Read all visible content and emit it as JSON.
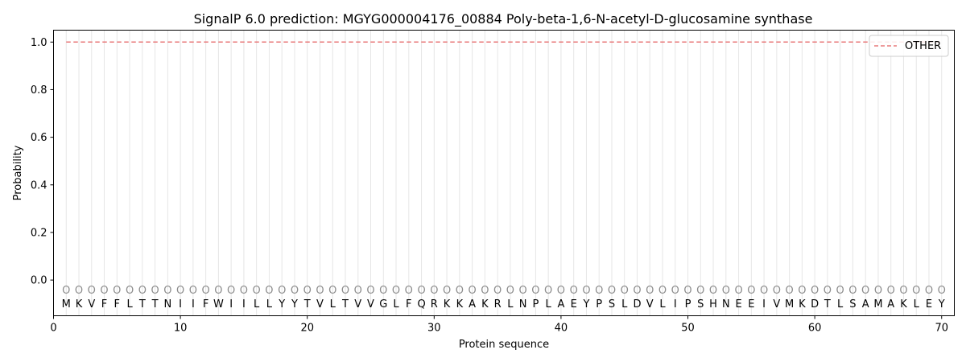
{
  "chart_data": {
    "type": "line",
    "title": "SignalP 6.0 prediction: MGYG000004176_00884 Poly-beta-1,6-N-acetyl-D-glucosamine synthase",
    "xlabel": "Protein sequence",
    "ylabel": "Probability",
    "xlim": [
      0,
      71
    ],
    "ylim": [
      -0.15,
      1.05
    ],
    "xticks": [
      0,
      10,
      20,
      30,
      40,
      50,
      60,
      70
    ],
    "yticks": [
      "0.0",
      "0.2",
      "0.4",
      "0.6",
      "0.8",
      "1.0"
    ],
    "ytick_values": [
      0.0,
      0.2,
      0.4,
      0.6,
      0.8,
      1.0
    ],
    "sequence": [
      "M",
      "K",
      "V",
      "F",
      "F",
      "L",
      "T",
      "T",
      "N",
      "I",
      "I",
      "F",
      "W",
      "I",
      "I",
      "L",
      "L",
      "Y",
      "Y",
      "T",
      "V",
      "L",
      "T",
      "V",
      "V",
      "G",
      "L",
      "F",
      "Q",
      "R",
      "K",
      "K",
      "A",
      "K",
      "R",
      "L",
      "N",
      "P",
      "L",
      "A",
      "E",
      "Y",
      "P",
      "S",
      "L",
      "D",
      "V",
      "L",
      "I",
      "P",
      "S",
      "H",
      "N",
      "E",
      "E",
      "I",
      "V",
      "M",
      "K",
      "D",
      "T",
      "L",
      "S",
      "A",
      "M",
      "A",
      "K",
      "L",
      "E",
      "Y"
    ],
    "region_labels": [
      "O",
      "O",
      "O",
      "O",
      "O",
      "O",
      "O",
      "O",
      "O",
      "O",
      "O",
      "O",
      "O",
      "O",
      "O",
      "O",
      "O",
      "O",
      "O",
      "O",
      "O",
      "O",
      "O",
      "O",
      "O",
      "O",
      "O",
      "O",
      "O",
      "O",
      "O",
      "O",
      "O",
      "O",
      "O",
      "O",
      "O",
      "O",
      "O",
      "O",
      "O",
      "O",
      "O",
      "O",
      "O",
      "O",
      "O",
      "O",
      "O",
      "O",
      "O",
      "O",
      "O",
      "O",
      "O",
      "O",
      "O",
      "O",
      "O",
      "O",
      "O",
      "O",
      "O",
      "O",
      "O",
      "O",
      "O",
      "O",
      "O",
      "O"
    ],
    "series": [
      {
        "name": "OTHER",
        "color": "#e8797a",
        "style": "dashed",
        "x_start": 1,
        "x_end": 70,
        "values": [
          1,
          1,
          1,
          1,
          1,
          1,
          1,
          1,
          1,
          1,
          1,
          1,
          1,
          1,
          1,
          1,
          1,
          1,
          1,
          1,
          1,
          1,
          1,
          1,
          1,
          1,
          1,
          1,
          1,
          1,
          1,
          1,
          1,
          1,
          1,
          1,
          1,
          1,
          1,
          1,
          1,
          1,
          1,
          1,
          1,
          1,
          1,
          1,
          1,
          1,
          1,
          1,
          1,
          1,
          1,
          1,
          1,
          1,
          1,
          1,
          1,
          1,
          1,
          1,
          1,
          1,
          1,
          1,
          1,
          1
        ]
      }
    ],
    "legend_position": "top-right",
    "grid": "vertical lines at each residue position"
  }
}
